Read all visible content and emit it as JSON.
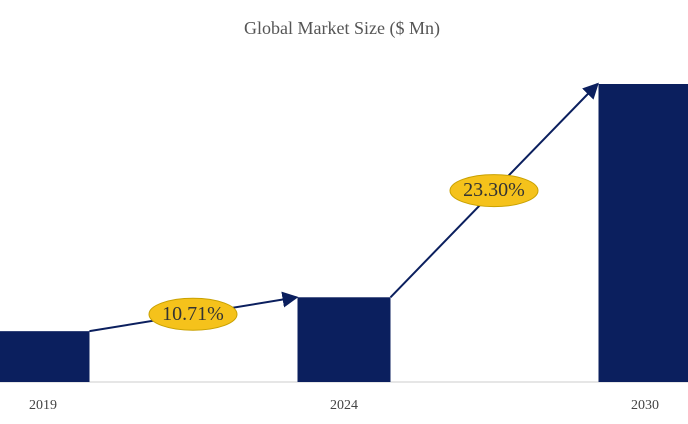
{
  "chart_data": {
    "type": "bar",
    "title": "Global Market Size ($ Mn)",
    "categories": [
      "2019",
      "2024",
      "2030"
    ],
    "values": [
      51,
      85,
      299
    ],
    "color": "#0b1f5e",
    "annotations": [
      "10.71%",
      "23.30%"
    ]
  }
}
